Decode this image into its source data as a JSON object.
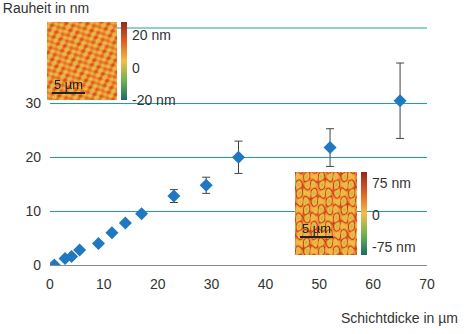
{
  "chart_data": {
    "type": "scatter",
    "title": "Rauheit in nm",
    "x_label": "Schichtdicke in µm",
    "x": [
      0.8,
      2.8,
      4,
      5.5,
      9,
      11.5,
      14,
      17,
      23,
      29,
      35,
      52,
      65
    ],
    "values": [
      0,
      1.2,
      1.6,
      2.8,
      4,
      6,
      7.8,
      9.5,
      12.8,
      14.8,
      20,
      21.8,
      30.5
    ],
    "error": [
      null,
      null,
      null,
      null,
      null,
      null,
      null,
      null,
      1.2,
      1.5,
      3,
      3.5,
      7
    ],
    "color": "#1f78c1",
    "marker": "diamond",
    "xlim": [
      0,
      70
    ],
    "xticks": [
      0,
      10,
      20,
      30,
      40,
      50,
      60,
      70
    ],
    "ylim": [
      0,
      44
    ],
    "yticks": [
      0,
      10,
      20,
      30
    ],
    "grid": true,
    "insets": [
      {
        "colorbar_labels": [
          "20 nm",
          "0",
          "-20 nm"
        ],
        "scale_label": "5 µm"
      },
      {
        "colorbar_labels": [
          "75 nm",
          "0",
          "-75 nm"
        ],
        "scale_label": "5 µm"
      }
    ]
  }
}
